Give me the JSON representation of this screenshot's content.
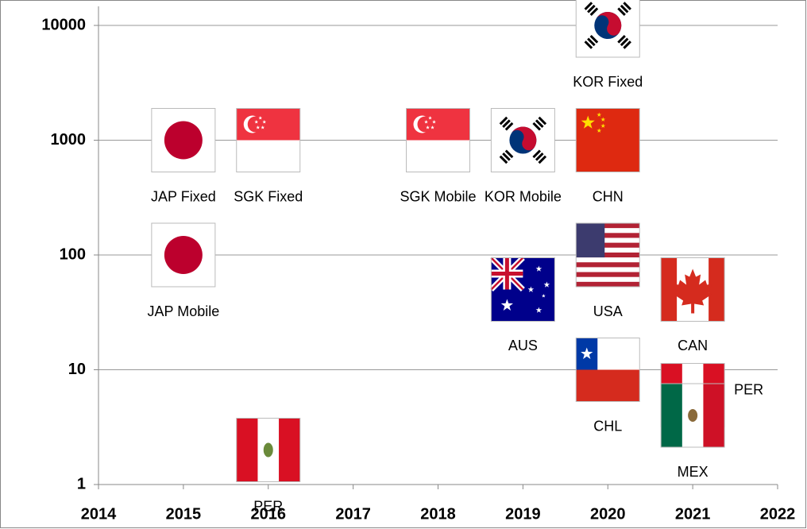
{
  "chart_data": {
    "type": "scatter",
    "log_y": true,
    "grid": true,
    "xlim": [
      2014,
      2022
    ],
    "xticks": [
      2014,
      2015,
      2016,
      2017,
      2018,
      2019,
      2020,
      2021,
      2022
    ],
    "ylim": [
      1,
      10000
    ],
    "yticks": [
      1,
      10,
      100,
      1000,
      10000
    ],
    "points": [
      {
        "label": "KOR Fixed",
        "x": 2020,
        "y": 10000,
        "marker": "korea"
      },
      {
        "label": "JAP Fixed",
        "x": 2015,
        "y": 1000,
        "marker": "japan"
      },
      {
        "label": "SGK Fixed",
        "x": 2016,
        "y": 1000,
        "marker": "singapore"
      },
      {
        "label": "SGK Mobile",
        "x": 2018,
        "y": 1000,
        "marker": "singapore"
      },
      {
        "label": "KOR Mobile",
        "x": 2019,
        "y": 1000,
        "marker": "korea"
      },
      {
        "label": "CHN",
        "x": 2020,
        "y": 1000,
        "marker": "china"
      },
      {
        "label": "JAP Mobile",
        "x": 2015,
        "y": 100,
        "marker": "japan"
      },
      {
        "label": "USA",
        "x": 2020,
        "y": 100,
        "marker": "usa"
      },
      {
        "label": "AUS",
        "x": 2019,
        "y": 50,
        "marker": "australia"
      },
      {
        "label": "CAN",
        "x": 2021,
        "y": 50,
        "marker": "canada"
      },
      {
        "label": "CHL",
        "x": 2020,
        "y": 10,
        "marker": "chile"
      },
      {
        "label": "PER",
        "x": 2021,
        "y": 6,
        "marker": "peru"
      },
      {
        "label": "MEX",
        "x": 2021,
        "y": 4,
        "marker": "mexico"
      },
      {
        "label": "PER",
        "x": 2016,
        "y": 2,
        "marker": "peru"
      }
    ]
  }
}
